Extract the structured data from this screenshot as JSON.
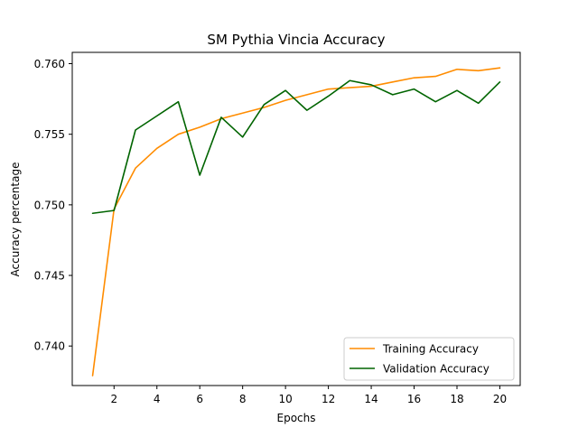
{
  "chart_data": {
    "type": "line",
    "title": "SM Pythia Vincia Accuracy",
    "xlabel": "Epochs",
    "ylabel": "Accuracy percentage",
    "x": [
      1,
      2,
      3,
      4,
      5,
      6,
      7,
      8,
      9,
      10,
      11,
      12,
      13,
      14,
      15,
      16,
      17,
      18,
      19,
      20
    ],
    "xlim": [
      0.05,
      20.95
    ],
    "ylim": [
      0.7372,
      0.7608
    ],
    "xticks": [
      2,
      4,
      6,
      8,
      10,
      12,
      14,
      16,
      18,
      20
    ],
    "yticks": [
      0.74,
      0.745,
      0.75,
      0.755,
      0.76
    ],
    "ytick_labels": [
      "0.740",
      "0.745",
      "0.750",
      "0.755",
      "0.760"
    ],
    "grid": false,
    "legend_position": "lower-right",
    "series": [
      {
        "name": "Training Accuracy",
        "color": "#ff8c00",
        "values": [
          0.7379,
          0.7497,
          0.7526,
          0.754,
          0.755,
          0.7555,
          0.7561,
          0.7565,
          0.7569,
          0.7574,
          0.7578,
          0.7582,
          0.7583,
          0.7584,
          0.7587,
          0.759,
          0.7591,
          0.7596,
          0.7595,
          0.7597
        ]
      },
      {
        "name": "Validation Accuracy",
        "color": "#006400",
        "values": [
          0.7494,
          0.7496,
          0.7553,
          0.7563,
          0.7573,
          0.7521,
          0.7562,
          0.7548,
          0.7571,
          0.7581,
          0.7567,
          0.7577,
          0.7588,
          0.7585,
          0.7578,
          0.7582,
          0.7573,
          0.7581,
          0.7572,
          0.7587
        ]
      }
    ]
  }
}
